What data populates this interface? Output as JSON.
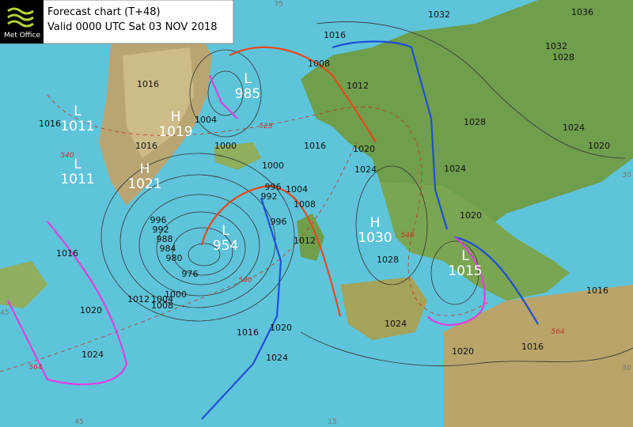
{
  "header": {
    "logo": "Met Office",
    "title": "Forecast chart (T+48)",
    "valid": "Valid 0000 UTC Sat 03 NOV 2018"
  },
  "pressure_centers": [
    {
      "kind": "L",
      "value": 1011
    },
    {
      "kind": "L",
      "value": 1011
    },
    {
      "kind": "H",
      "value": 1019
    },
    {
      "kind": "H",
      "value": 1021
    },
    {
      "kind": "L",
      "value": 985
    },
    {
      "kind": "L",
      "value": 954
    },
    {
      "kind": "H",
      "value": 1030
    },
    {
      "kind": "L",
      "value": 1015
    }
  ],
  "isobar_labels": [
    1016,
    1008,
    1012,
    1032,
    1036,
    1032,
    1028,
    1028,
    1024,
    1024,
    1020,
    1020,
    1016,
    1016,
    1020,
    1024,
    1028,
    1016,
    1016,
    1004,
    1000,
    1000,
    996,
    1004,
    1008,
    1012,
    1016,
    1020,
    1024,
    1016,
    1020,
    1024,
    1000,
    1004,
    1008,
    1012,
    1016,
    1020,
    1024,
    996,
    992,
    988,
    984,
    980,
    976,
    996,
    992,
    1016
  ],
  "thickness_labels": [
    528,
    540,
    540,
    546,
    564,
    564
  ],
  "grid_labels": [
    75,
    45,
    15,
    30,
    30,
    45
  ]
}
